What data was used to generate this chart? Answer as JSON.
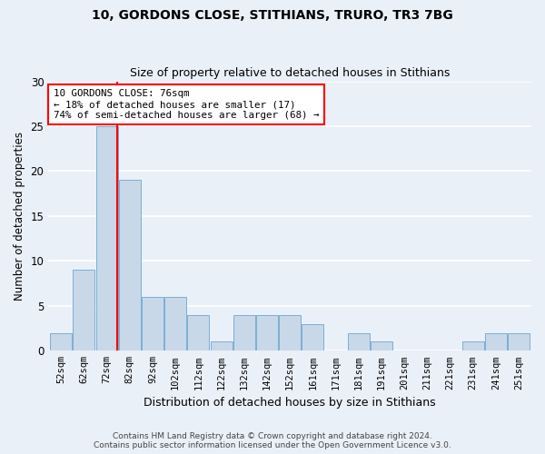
{
  "title1": "10, GORDONS CLOSE, STITHIANS, TRURO, TR3 7BG",
  "title2": "Size of property relative to detached houses in Stithians",
  "xlabel": "Distribution of detached houses by size in Stithians",
  "ylabel": "Number of detached properties",
  "categories": [
    "52sqm",
    "62sqm",
    "72sqm",
    "82sqm",
    "92sqm",
    "102sqm",
    "112sqm",
    "122sqm",
    "132sqm",
    "142sqm",
    "152sqm",
    "161sqm",
    "171sqm",
    "181sqm",
    "191sqm",
    "201sqm",
    "211sqm",
    "221sqm",
    "231sqm",
    "241sqm",
    "251sqm"
  ],
  "values": [
    2,
    9,
    25,
    19,
    6,
    6,
    4,
    1,
    4,
    4,
    4,
    3,
    0,
    2,
    1,
    0,
    0,
    0,
    1,
    2,
    2
  ],
  "bar_color": "#c8d8e8",
  "bar_edge_color": "#7bafd4",
  "annotation_text": "10 GORDONS CLOSE: 76sqm\n← 18% of detached houses are smaller (17)\n74% of semi-detached houses are larger (68) →",
  "annotation_box_color": "white",
  "annotation_box_edge": "red",
  "ylim": [
    0,
    30
  ],
  "yticks": [
    0,
    5,
    10,
    15,
    20,
    25,
    30
  ],
  "footer1": "Contains HM Land Registry data © Crown copyright and database right 2024.",
  "footer2": "Contains public sector information licensed under the Open Government Licence v3.0.",
  "background_color": "#eaf0f8",
  "grid_color": "white",
  "red_line_color": "red",
  "red_line_x": 2.47
}
